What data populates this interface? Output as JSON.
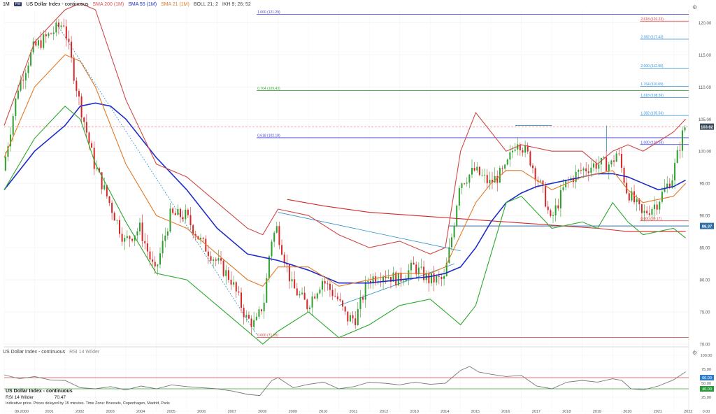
{
  "header": {
    "interval": "1M",
    "badge": "FW",
    "title": "US Dollar Index - continuous",
    "indicators": [
      {
        "label": "SMA 200 (1M)",
        "color": "#e05050"
      },
      {
        "label": "SMA 55 (1M)",
        "color": "#1c2bc8"
      },
      {
        "label": "SMA 21 (1M)",
        "color": "#e07a28"
      },
      {
        "label": "BOLL 21; 2",
        "color": "#444444"
      },
      {
        "label": "IKH 9; 26; 52",
        "color": "#444444"
      }
    ]
  },
  "rsi_header": {
    "title": "US Dollar Index - continuous",
    "indicator": "RSI 14 Wilder"
  },
  "info_box": {
    "title": "US Dollar Index - continuous",
    "rsi_label": "RSI 14 Wilder",
    "rsi_value": "70.47",
    "note": "Indicative price. Prices delayed by 15 minutes. Time Zone: Brussels, Copenhagen, Madrid, Paris"
  },
  "colors": {
    "up": "#2ca02c",
    "down": "#d62728",
    "sma200": "#d42a2a",
    "sma55": "#1c2bc8",
    "sma21": "#e07a28",
    "boll_upper": "#d04848",
    "boll_lower": "#2ea82e",
    "fib_blue": "#3b3bd6",
    "fib_green": "#3aa83a",
    "fib_red": "#d43a3a",
    "fib_light": "#2f8fd6",
    "trend": "#2f8fc8",
    "price_tag": "#3a4a5a"
  },
  "chart_data": [
    {
      "type": "candlestick",
      "title": "US Dollar Index - continuous",
      "x": [
        "2000",
        "2001",
        "2002",
        "2003",
        "2004",
        "2005",
        "2006",
        "2007",
        "2008",
        "2009",
        "2010",
        "2011",
        "2012",
        "2013",
        "2014",
        "2015",
        "2016",
        "2017",
        "2018",
        "2019",
        "2020",
        "2021",
        "2022"
      ],
      "x_first_label": "09.2000",
      "ylim": [
        70,
        122
      ],
      "yticks": [
        70,
        75,
        80,
        85,
        90,
        95,
        100,
        105,
        110,
        115,
        120
      ],
      "ytick_labels": [
        "70.00",
        "75.00",
        "80.00",
        "85.00",
        "90.00",
        "95.00",
        "100.00",
        "105.00",
        "110.00",
        "115.00",
        "120.00"
      ],
      "last_price": "103.82",
      "series": [
        {
          "name": "US Dollar Index - continuous",
          "x": [
            2000.0,
            2000.5,
            2001.0,
            2001.5,
            2002.0,
            2002.5,
            2003.0,
            2003.5,
            2004.0,
            2004.5,
            2005.0,
            2005.5,
            2006.0,
            2006.5,
            2007.0,
            2007.5,
            2008.0,
            2008.3,
            2008.6,
            2008.8,
            2009.0,
            2009.5,
            2010.0,
            2010.5,
            2011.0,
            2011.3,
            2011.6,
            2012.0,
            2012.5,
            2013.0,
            2013.5,
            2014.0,
            2014.5,
            2014.8,
            2015.0,
            2015.5,
            2016.0,
            2016.5,
            2016.9,
            2017.3,
            2017.8,
            2018.0,
            2018.5,
            2019.0,
            2019.5,
            2020.0,
            2020.2,
            2020.5,
            2020.9,
            2021.0,
            2021.5,
            2022.0,
            2022.2,
            2022.4
          ],
          "close": [
            97,
            110,
            116,
            118,
            120,
            108,
            98,
            92,
            86,
            88,
            81,
            90,
            90,
            86,
            83,
            80,
            74,
            73,
            77,
            86,
            88,
            79,
            76,
            80,
            77,
            74,
            74,
            80,
            81,
            80,
            82,
            80,
            80,
            88,
            95,
            97,
            95,
            97,
            102,
            99,
            93,
            89,
            95,
            97,
            98,
            98,
            100,
            94,
            91,
            90,
            92,
            96,
            100,
            103.8
          ]
        },
        {
          "name": "SMA 200 (1M)",
          "x": [
            2009.3,
            2010.5,
            2012.0,
            2013.5,
            2015.0,
            2016.5,
            2018.0,
            2019.5,
            2020.5,
            2021.5,
            2022.4
          ],
          "y": [
            92.5,
            91.5,
            90.5,
            90.0,
            89.5,
            89.0,
            88.5,
            88.0,
            87.5,
            87.5,
            87.5
          ]
        },
        {
          "name": "SMA 55 (1M)",
          "x": [
            2000.0,
            2001.0,
            2002.0,
            2002.5,
            2003.0,
            2003.5,
            2004.0,
            2005.0,
            2006.0,
            2007.0,
            2008.0,
            2009.0,
            2010.0,
            2011.0,
            2012.0,
            2013.0,
            2014.0,
            2014.5,
            2015.0,
            2015.5,
            2016.0,
            2016.5,
            2017.0,
            2017.5,
            2018.0,
            2018.5,
            2019.0,
            2019.5,
            2020.0,
            2020.5,
            2021.0,
            2021.5,
            2022.0,
            2022.4
          ],
          "y": [
            94,
            100,
            104,
            107,
            107.5,
            107,
            105,
            99,
            94,
            88,
            84,
            83,
            81.5,
            79.5,
            79.5,
            80,
            80.5,
            81,
            82,
            85,
            89,
            92,
            93.5,
            94.5,
            95,
            95.5,
            96,
            96.5,
            96.5,
            96,
            95,
            94,
            94.5,
            95.5
          ]
        },
        {
          "name": "SMA 21 (1M)",
          "x": [
            2000.0,
            2001.0,
            2002.0,
            2002.5,
            2003.0,
            2004.0,
            2005.0,
            2006.0,
            2007.0,
            2008.0,
            2008.5,
            2009.0,
            2010.0,
            2011.0,
            2012.0,
            2013.0,
            2014.0,
            2014.5,
            2015.0,
            2015.5,
            2016.0,
            2016.5,
            2017.0,
            2018.0,
            2019.0,
            2020.0,
            2020.5,
            2021.0,
            2022.0,
            2022.4
          ],
          "y": [
            99,
            110,
            115,
            114,
            110,
            98,
            90,
            88,
            84,
            80,
            79,
            82,
            82,
            79,
            80,
            81,
            81,
            82,
            87,
            92,
            95,
            97,
            97,
            94,
            96,
            97,
            94,
            92,
            93,
            95
          ]
        },
        {
          "name": "BOLL upper",
          "x": [
            2000.0,
            2001.0,
            2002.0,
            2002.5,
            2003.0,
            2003.5,
            2004.0,
            2005.0,
            2006.0,
            2007.0,
            2008.0,
            2008.5,
            2009.0,
            2010.0,
            2011.0,
            2012.0,
            2013.0,
            2014.0,
            2014.5,
            2015.0,
            2015.5,
            2016.0,
            2016.5,
            2017.0,
            2018.0,
            2019.0,
            2019.5,
            2020.0,
            2020.5,
            2021.0,
            2022.0,
            2022.4
          ],
          "y": [
            104,
            117,
            122,
            123,
            122,
            115,
            108,
            98,
            96,
            92,
            88,
            87,
            91,
            90,
            87,
            85,
            86,
            84,
            85,
            100,
            106,
            103,
            100,
            101,
            100,
            100,
            98,
            100,
            101,
            100,
            103,
            105
          ]
        },
        {
          "name": "BOLL lower",
          "x": [
            2000.0,
            2001.0,
            2002.0,
            2002.5,
            2003.0,
            2004.0,
            2005.0,
            2006.0,
            2007.0,
            2008.0,
            2008.5,
            2009.0,
            2010.0,
            2011.0,
            2012.0,
            2013.0,
            2014.0,
            2014.5,
            2015.0,
            2015.5,
            2016.0,
            2016.5,
            2017.0,
            2018.0,
            2019.0,
            2019.5,
            2020.0,
            2020.5,
            2021.0,
            2022.0,
            2022.4
          ],
          "y": [
            94,
            102,
            107,
            105,
            98,
            89,
            81,
            80,
            76,
            72,
            70,
            72,
            75,
            71,
            73,
            76,
            77,
            75,
            73,
            76,
            84,
            92,
            93,
            88,
            89,
            88,
            92,
            89,
            87,
            88,
            86.5
          ]
        }
      ],
      "horizontal_levels": [
        {
          "label": "1.000 (121.29)",
          "value": 121.29,
          "color_key": "fib_blue"
        },
        {
          "label": "0.764 (109.43)",
          "value": 109.43,
          "color_key": "fib_green"
        },
        {
          "label": "0.618 (102.10)",
          "value": 102.1,
          "color_key": "fib_blue"
        },
        {
          "label": "2.618 (120.23)",
          "value": 120.23,
          "color_key": "fib_red"
        },
        {
          "label": "2.382 (117.43)",
          "value": 117.43,
          "color_key": "fib_light"
        },
        {
          "label": "2.000 (112.90)",
          "value": 112.9,
          "color_key": "fib_light"
        },
        {
          "label": "1.764 (110.09)",
          "value": 110.09,
          "color_key": "fib_light"
        },
        {
          "label": "1.618 (108.36)",
          "value": 108.36,
          "color_key": "fib_light"
        },
        {
          "label": "1.382 (105.56)",
          "value": 105.56,
          "color_key": "fib_light"
        },
        {
          "label": "1.000 (101.03)",
          "value": 101.03,
          "color_key": "fib_blue"
        },
        {
          "label": "0.000 (89.17)",
          "value": 89.17,
          "color_key": "fib_red"
        },
        {
          "label": "0.000 (71.05)",
          "value": 71.05,
          "color_key": "fib_red"
        }
      ],
      "price_tags": [
        {
          "label": "103.82",
          "value": 103.82
        },
        {
          "label": "88.37",
          "value": 88.37
        }
      ]
    },
    {
      "type": "line",
      "title": "RSI 14 Wilder",
      "ylim": [
        0,
        100
      ],
      "yticks": [
        0,
        25,
        50,
        75,
        100
      ],
      "ytick_labels": [
        "0.00",
        "25.00",
        "50.00",
        "75.00",
        "100.00"
      ],
      "levels": [
        {
          "label": "60.00",
          "value": 60
        },
        {
          "label": "40.00",
          "value": 40
        }
      ],
      "series": [
        {
          "name": "RSI 14 Wilder",
          "x": [
            2000.0,
            2000.5,
            2001.0,
            2001.5,
            2002.0,
            2002.5,
            2003.0,
            2003.5,
            2004.0,
            2004.5,
            2005.0,
            2005.5,
            2006.0,
            2006.5,
            2007.0,
            2007.5,
            2008.0,
            2008.4,
            2008.8,
            2009.0,
            2009.5,
            2010.0,
            2010.5,
            2011.0,
            2011.5,
            2012.0,
            2012.5,
            2013.0,
            2013.5,
            2014.0,
            2014.5,
            2015.0,
            2015.3,
            2015.6,
            2016.0,
            2016.5,
            2017.0,
            2017.5,
            2018.0,
            2018.5,
            2019.0,
            2019.5,
            2020.0,
            2020.3,
            2020.6,
            2021.0,
            2021.5,
            2022.0,
            2022.4
          ],
          "y": [
            65,
            58,
            62,
            56,
            55,
            42,
            40,
            44,
            38,
            45,
            40,
            47,
            44,
            42,
            40,
            36,
            30,
            28,
            55,
            60,
            42,
            48,
            52,
            40,
            44,
            52,
            50,
            47,
            52,
            48,
            50,
            73,
            80,
            70,
            66,
            62,
            64,
            45,
            40,
            52,
            55,
            52,
            58,
            55,
            40,
            38,
            45,
            56,
            70.47
          ]
        }
      ]
    }
  ]
}
